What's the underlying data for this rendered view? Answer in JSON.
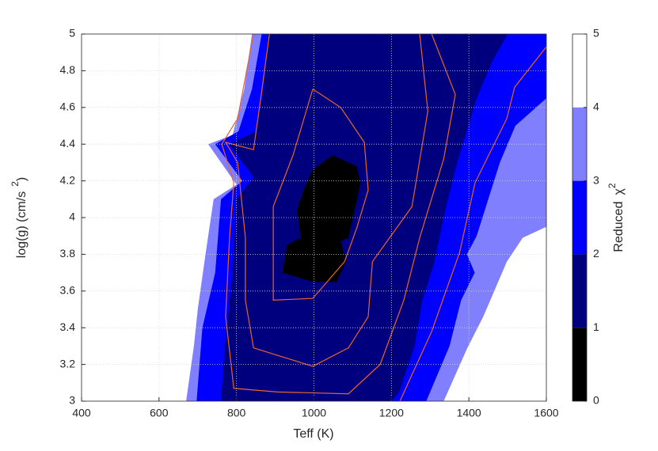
{
  "chart_data": {
    "type": "contour",
    "xlabel": "Teff (K)",
    "ylabel": [
      "log(g) (cm/s",
      "2",
      ")"
    ],
    "colorbar_label": [
      "Reduced",
      "χ",
      "2"
    ],
    "xlim": [
      400,
      1600
    ],
    "ylim": [
      3,
      5
    ],
    "xticks": [
      400,
      600,
      800,
      1000,
      1200,
      1400,
      1600
    ],
    "yticks": [
      3,
      3.2,
      3.4,
      3.6,
      3.8,
      4,
      4.2,
      4.4,
      4.6,
      4.8,
      5
    ],
    "clim": [
      0,
      5
    ],
    "cticks": [
      0,
      1,
      2,
      3,
      4,
      5
    ],
    "background": "#ffffff",
    "grid": true,
    "fills": [
      {
        "level": 4,
        "color": "#8080ff",
        "x": [
          670,
          690,
          700,
          720,
          741,
          800,
          727,
          790,
          820,
          840,
          1600,
          1600,
          1539,
          1498,
          1437,
          1396,
          1335
        ],
        "y": [
          3,
          3.3,
          3.5,
          3.8,
          4.1,
          4.18,
          4.4,
          4.45,
          4.7,
          5,
          5,
          3.95,
          3.89,
          3.76,
          3.46,
          3.29,
          3
        ]
      },
      {
        "level": 3,
        "color": "#0000ff",
        "x": [
          697,
          712,
          745,
          760,
          815,
          745,
          805,
          840,
          865,
          1600,
          1600,
          1520,
          1480,
          1450,
          1420,
          1395,
          1415,
          1380,
          1350,
          1310,
          1290
        ],
        "y": [
          3,
          3.4,
          3.7,
          4.1,
          4.2,
          4.4,
          4.47,
          4.7,
          5,
          5,
          4.65,
          4.5,
          4.3,
          4.1,
          3.9,
          3.8,
          3.7,
          3.55,
          3.3,
          3.1,
          3
        ]
      },
      {
        "level": 2,
        "color": "#00007f",
        "x": [
          760,
          770,
          790,
          800,
          845,
          780,
          850,
          870,
          880,
          1500,
          1460,
          1420,
          1370,
          1340,
          1310,
          1280,
          1260,
          1220,
          1200
        ],
        "y": [
          3,
          3.3,
          3.7,
          4.1,
          4.22,
          4.4,
          4.47,
          4.7,
          5,
          5,
          4.85,
          4.65,
          4.3,
          4.05,
          3.75,
          3.55,
          3.3,
          3.05,
          3
        ]
      },
      {
        "level": 1,
        "color": "#000000",
        "x": [
          997,
          1048,
          1110,
          1120,
          1110,
          1089,
          1069,
          1083,
          1058,
          997,
          919,
          930,
          966,
          956,
          977
        ],
        "y": [
          4.26,
          4.34,
          4.28,
          4.19,
          4.09,
          3.89,
          3.87,
          3.76,
          3.65,
          3.65,
          3.7,
          3.85,
          3.89,
          4.04,
          4.17
        ]
      }
    ],
    "lines": [
      {
        "color": "#e8632b",
        "x": [
          997,
          1069,
          1130,
          1140,
          1110,
          1079,
          997,
          895,
          895,
          946,
          997
        ],
        "y": [
          4.7,
          4.6,
          4.41,
          4.15,
          3.94,
          3.76,
          3.56,
          3.55,
          4.06,
          4.34,
          4.7
        ]
      },
      {
        "color": "#e8632b",
        "x": [
          885,
          864,
          844,
          772,
          803,
          823,
          823,
          844,
          997,
          1089,
          1140,
          1151,
          1253,
          1294,
          1273
        ],
        "y": [
          5,
          4.67,
          4.37,
          4.41,
          4.3,
          3.89,
          3.55,
          3.29,
          3.19,
          3.29,
          3.46,
          3.76,
          4.06,
          4.58,
          5
        ]
      },
      {
        "color": "#e8632b",
        "x": [
          844,
          803,
          762,
          793,
          782,
          772,
          793,
          905,
          1089,
          1171,
          1232,
          1273,
          1335,
          1365,
          1304
        ],
        "y": [
          5,
          4.54,
          4.4,
          4.19,
          3.89,
          3.46,
          3.07,
          3.05,
          3.04,
          3.2,
          3.55,
          3.89,
          4.32,
          4.67,
          5
        ]
      },
      {
        "color": "#e8632b",
        "x": [
          1222,
          1304,
          1376,
          1416,
          1498,
          1518,
          1600
        ],
        "y": [
          3,
          3.38,
          3.81,
          4.19,
          4.54,
          4.71,
          4.93
        ]
      }
    ]
  }
}
